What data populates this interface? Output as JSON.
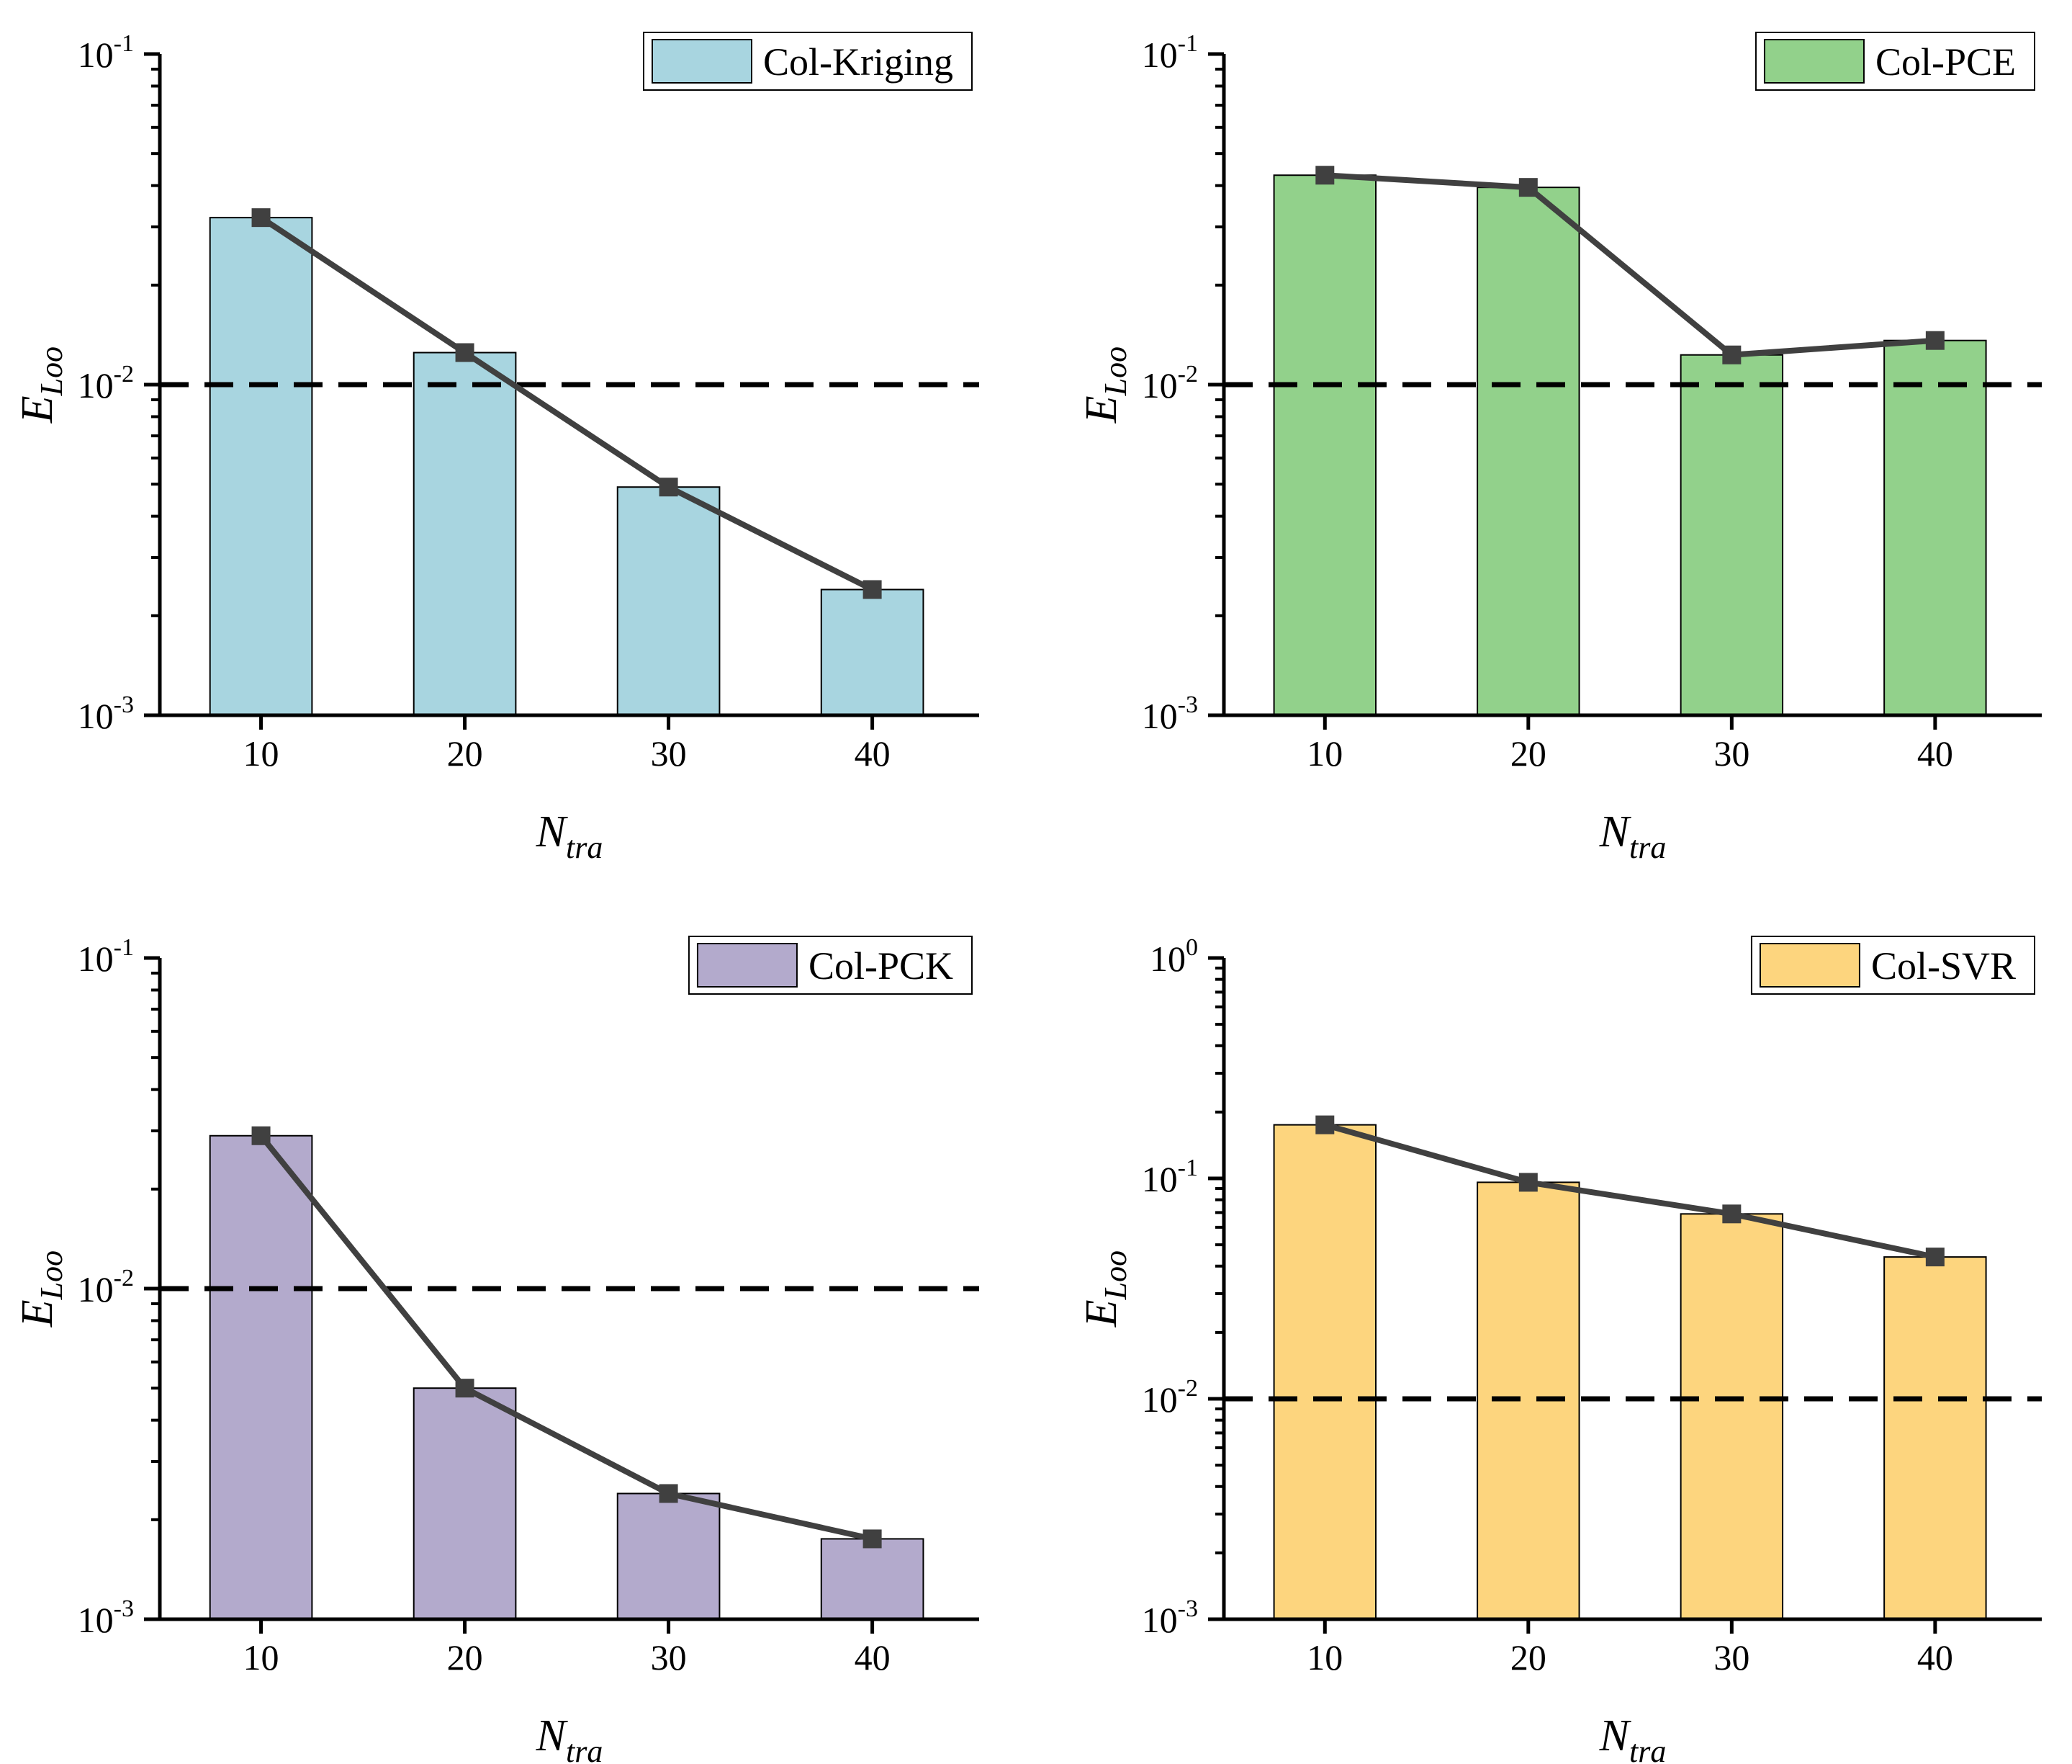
{
  "chart_data": [
    {
      "type": "bar",
      "categories": [
        "10",
        "20",
        "30",
        "40"
      ],
      "series": [
        {
          "name": "Col-Kriging",
          "kind": "bar",
          "values": [
            0.032,
            0.0125,
            0.0049,
            0.0024
          ],
          "color": "#A8D5E0"
        },
        {
          "name": "",
          "kind": "line",
          "values": [
            0.032,
            0.0125,
            0.0049,
            0.0024
          ],
          "color": "#404040"
        }
      ],
      "threshold": 0.01,
      "legend": "top-right",
      "xlabel": {
        "main": "N",
        "sub": "tra"
      },
      "ylabel": {
        "main": "E",
        "sub": "Loo"
      },
      "ylim": [
        0.001,
        0.1
      ],
      "yscale": "log",
      "yticks": [
        {
          "base": "10",
          "exp": "-3"
        },
        {
          "base": "10",
          "exp": "-2"
        },
        {
          "base": "10",
          "exp": "-1"
        }
      ]
    },
    {
      "type": "bar",
      "categories": [
        "10",
        "20",
        "30",
        "40"
      ],
      "series": [
        {
          "name": "Col-PCE",
          "kind": "bar",
          "values": [
            0.043,
            0.0395,
            0.0123,
            0.0136
          ],
          "color": "#92D18B"
        },
        {
          "name": "",
          "kind": "line",
          "values": [
            0.043,
            0.0395,
            0.0123,
            0.0136
          ],
          "color": "#404040"
        }
      ],
      "threshold": 0.01,
      "legend": "top-right",
      "xlabel": {
        "main": "N",
        "sub": "tra"
      },
      "ylabel": {
        "main": "E",
        "sub": "Loo"
      },
      "ylim": [
        0.001,
        0.1
      ],
      "yscale": "log",
      "yticks": [
        {
          "base": "10",
          "exp": "-3"
        },
        {
          "base": "10",
          "exp": "-2"
        },
        {
          "base": "10",
          "exp": "-1"
        }
      ]
    },
    {
      "type": "bar",
      "categories": [
        "10",
        "20",
        "30",
        "40"
      ],
      "series": [
        {
          "name": "Col-PCK",
          "kind": "bar",
          "values": [
            0.029,
            0.005,
            0.0024,
            0.00175
          ],
          "color": "#B3AACC"
        },
        {
          "name": "",
          "kind": "line",
          "values": [
            0.029,
            0.005,
            0.0024,
            0.00175
          ],
          "color": "#404040"
        }
      ],
      "threshold": 0.01,
      "legend": "top-right",
      "xlabel": {
        "main": "N",
        "sub": "tra"
      },
      "ylabel": {
        "main": "E",
        "sub": "Loo"
      },
      "ylim": [
        0.001,
        0.1
      ],
      "yscale": "log",
      "yticks": [
        {
          "base": "10",
          "exp": "-3"
        },
        {
          "base": "10",
          "exp": "-2"
        },
        {
          "base": "10",
          "exp": "-1"
        }
      ]
    },
    {
      "type": "bar",
      "categories": [
        "10",
        "20",
        "30",
        "40"
      ],
      "series": [
        {
          "name": "Col-SVR",
          "kind": "bar",
          "values": [
            0.175,
            0.096,
            0.069,
            0.044
          ],
          "color": "#FDD57E"
        },
        {
          "name": "",
          "kind": "line",
          "values": [
            0.175,
            0.096,
            0.069,
            0.044
          ],
          "color": "#404040"
        }
      ],
      "threshold": 0.01,
      "legend": "top-right",
      "xlabel": {
        "main": "N",
        "sub": "tra"
      },
      "ylabel": {
        "main": "E",
        "sub": "Loo"
      },
      "ylim": [
        0.001,
        1
      ],
      "yscale": "log",
      "yticks": [
        {
          "base": "10",
          "exp": "-3"
        },
        {
          "base": "10",
          "exp": "-2"
        },
        {
          "base": "10",
          "exp": "-1"
        },
        {
          "base": "10",
          "exp": "0"
        }
      ]
    }
  ]
}
